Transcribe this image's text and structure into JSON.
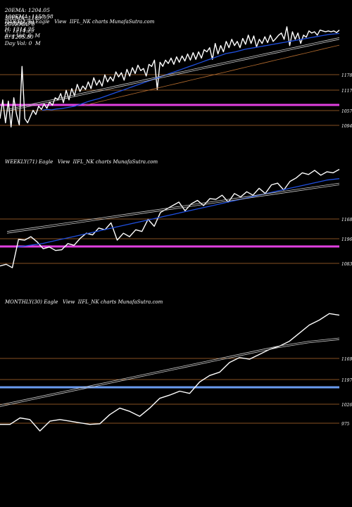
{
  "header": {
    "line1": [
      {
        "label": "20EMA:",
        "value": "1204.05"
      },
      {
        "label": "100EMA:",
        "value": "1158.58"
      },
      {
        "label": "O:",
        "value": "1205.80"
      },
      {
        "label": "H:",
        "value": "1214.25"
      },
      {
        "label": "Avg Vol:",
        "value": "0  M"
      }
    ],
    "line2": [
      {
        "label": "30EMA:",
        "value": "1189.77"
      },
      {
        "label": "200EMA:",
        "value": "0"
      },
      {
        "label": "C:",
        "value": "1214.25"
      },
      {
        "label": "L:",
        "value": "1205.80"
      },
      {
        "label": "Day Vol:",
        "value": "0  M"
      }
    ]
  },
  "colors": {
    "background": "#000000",
    "price": "#ffffff",
    "ema_fast": "#1f4fe0",
    "ema_slow": "#c8c8c8",
    "level_line": "#b36b2e",
    "daily_band": "#e040e0",
    "monthly_band": "#6a9bf0"
  },
  "chart_data": [
    {
      "type": "line",
      "title": "DAILY(176) Eagle   View  IIFL_NK charts MunafaSutra.com",
      "y_levels": [
        "1178",
        "1117",
        "1057",
        "1094"
      ],
      "band_level": "1075",
      "ylim": [
        970,
        1260
      ],
      "series": [
        {
          "role": "price",
          "values": [
            1040,
            1085,
            1030,
            1082,
            1020,
            1090,
            1050,
            1025,
            1165,
            1040,
            1030,
            1045,
            1060,
            1050,
            1070,
            1062,
            1075,
            1065,
            1080,
            1072,
            1090,
            1085,
            1100,
            1078,
            1108,
            1085,
            1112,
            1095,
            1122,
            1105,
            1118,
            1110,
            1128,
            1112,
            1138,
            1120,
            1132,
            1118,
            1145,
            1128,
            1140,
            1130,
            1152,
            1140,
            1150,
            1132,
            1158,
            1142,
            1162,
            1148,
            1168,
            1155,
            1160,
            1142,
            1170,
            1165,
            1180,
            1110,
            1175,
            1165,
            1180,
            1172,
            1185,
            1170,
            1188,
            1175,
            1190,
            1178,
            1195,
            1180,
            1198,
            1182,
            1200,
            1185,
            1205,
            1200,
            1210,
            1182,
            1220,
            1195,
            1215,
            1200,
            1225,
            1210,
            1230,
            1215,
            1225,
            1210,
            1232,
            1218,
            1240,
            1220,
            1238,
            1212,
            1230,
            1220,
            1236,
            1222,
            1240,
            1225,
            1232,
            1240,
            1245,
            1230,
            1260,
            1215,
            1248,
            1230,
            1245,
            1220,
            1240,
            1235,
            1250,
            1245,
            1248,
            1240,
            1252,
            1250,
            1248,
            1250,
            1248,
            1250,
            1246,
            1252
          ]
        },
        {
          "role": "ema_fast",
          "values": [
            1060,
            1062,
            1061,
            1063,
            1064,
            1066,
            1068,
            1070,
            1074,
            1078,
            1082,
            1085,
            1088,
            1092,
            1096,
            1100,
            1104,
            1108,
            1112,
            1116,
            1120,
            1124,
            1128,
            1132,
            1136,
            1140,
            1144,
            1148,
            1152,
            1156,
            1160,
            1164,
            1168,
            1172,
            1176,
            1180,
            1184,
            1188,
            1192,
            1196,
            1198,
            1200,
            1203,
            1206,
            1208,
            1210,
            1212,
            1214,
            1216,
            1218,
            1220,
            1222,
            1224,
            1226,
            1228,
            1230,
            1232,
            1234,
            1236,
            1238,
            1240,
            1242,
            1243,
            1244
          ]
        },
        {
          "role": "ema_slow_1",
          "values": [
            1062,
            1066,
            1070,
            1074,
            1078,
            1082,
            1086,
            1090,
            1094,
            1098,
            1102,
            1106,
            1110,
            1114,
            1118,
            1122,
            1126,
            1130,
            1134,
            1138,
            1142,
            1146,
            1150,
            1154,
            1158,
            1162,
            1166,
            1170,
            1174,
            1178,
            1182,
            1186,
            1190,
            1194,
            1198,
            1202,
            1206,
            1210,
            1214,
            1218,
            1222,
            1226,
            1230,
            1234
          ]
        },
        {
          "role": "ema_slow_2",
          "values": [
            1058,
            1062,
            1066,
            1070,
            1074,
            1078,
            1082,
            1086,
            1090,
            1094,
            1098,
            1102,
            1106,
            1110,
            1114,
            1118,
            1122,
            1126,
            1130,
            1134,
            1138,
            1142,
            1146,
            1150,
            1154,
            1158,
            1162,
            1166,
            1170,
            1174,
            1178,
            1182,
            1186,
            1190,
            1194,
            1198,
            1202,
            1206,
            1210,
            1214,
            1218,
            1222,
            1226,
            1230
          ]
        },
        {
          "role": "level_trend",
          "values": [
            1072,
            1076,
            1080,
            1084,
            1088,
            1092,
            1096,
            1100,
            1104,
            1108,
            1112,
            1116,
            1120,
            1124,
            1128,
            1132,
            1136,
            1140,
            1144,
            1148,
            1152,
            1156,
            1160,
            1164,
            1168,
            1172,
            1176,
            1180,
            1184,
            1188,
            1192,
            1196,
            1200,
            1204,
            1208,
            1212,
            1216
          ]
        }
      ]
    },
    {
      "type": "line",
      "title": "WEEKLY(71) Eagle   View  IIFL_NK charts MunafaSutra.com",
      "y_levels": [
        "1168",
        "1196",
        "1083"
      ],
      "band_level": "1100",
      "ylim": [
        960,
        1270
      ],
      "series": [
        {
          "role": "price",
          "values": [
            985,
            990,
            980,
            1062,
            1060,
            1070,
            1055,
            1035,
            1040,
            1030,
            1032,
            1050,
            1045,
            1065,
            1080,
            1075,
            1095,
            1090,
            1110,
            1060,
            1080,
            1070,
            1090,
            1085,
            1120,
            1100,
            1140,
            1150,
            1160,
            1170,
            1145,
            1165,
            1175,
            1160,
            1180,
            1178,
            1190,
            1170,
            1195,
            1185,
            1200,
            1190,
            1210,
            1195,
            1220,
            1225,
            1205,
            1230,
            1240,
            1255,
            1250,
            1262,
            1248,
            1258,
            1255,
            1265
          ]
        },
        {
          "role": "ema_fast",
          "values": [
            1040,
            1045,
            1050,
            1058,
            1066,
            1074,
            1082,
            1090,
            1098,
            1106,
            1114,
            1122,
            1130,
            1138,
            1146,
            1154,
            1162,
            1170,
            1178,
            1186,
            1194,
            1202,
            1210,
            1218,
            1226,
            1234,
            1238
          ]
        },
        {
          "role": "ema_slow_1",
          "values": [
            1085,
            1095,
            1105,
            1115,
            1125,
            1135,
            1145,
            1155,
            1165,
            1175,
            1185,
            1195,
            1205,
            1215,
            1225
          ]
        },
        {
          "role": "ema_slow_2",
          "values": [
            1080,
            1090,
            1100,
            1110,
            1120,
            1130,
            1140,
            1150,
            1160,
            1170,
            1180,
            1190,
            1200,
            1210,
            1220
          ]
        }
      ]
    },
    {
      "type": "line",
      "title": "MONTHLY(30) Eagle   View  IIFL_NK charts MunafaSutra.com",
      "y_levels": [
        "1169",
        "1197",
        "1026",
        "975"
      ],
      "band_level": "1050",
      "ylim": [
        940,
        1320
      ],
      "series": [
        {
          "role": "price",
          "values": [
            960,
            960,
            980,
            975,
            940,
            970,
            975,
            970,
            965,
            960,
            962,
            990,
            1010,
            1000,
            985,
            1010,
            1040,
            1050,
            1062,
            1055,
            1090,
            1110,
            1120,
            1150,
            1165,
            1160,
            1175,
            1190,
            1200,
            1215,
            1240,
            1265,
            1280,
            1300,
            1295
          ]
        },
        {
          "role": "ema_slow_1",
          "values": [
            1020,
            1040,
            1060,
            1080,
            1100,
            1120,
            1140,
            1160,
            1180,
            1200,
            1215,
            1225
          ]
        },
        {
          "role": "ema_slow_2",
          "values": [
            1015,
            1035,
            1055,
            1075,
            1095,
            1115,
            1135,
            1155,
            1175,
            1195,
            1210,
            1220
          ]
        }
      ]
    }
  ]
}
